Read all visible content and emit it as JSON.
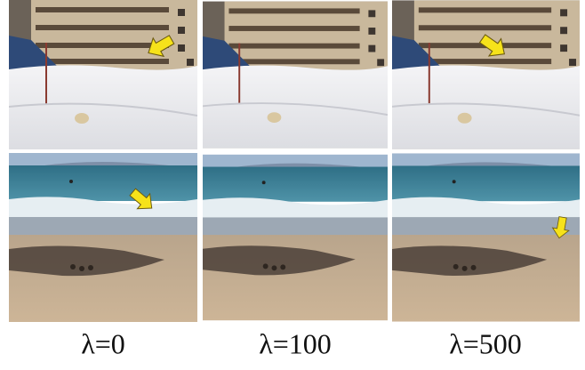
{
  "figure": {
    "labels": [
      "λ=0",
      "λ=100",
      "λ=500"
    ]
  }
}
